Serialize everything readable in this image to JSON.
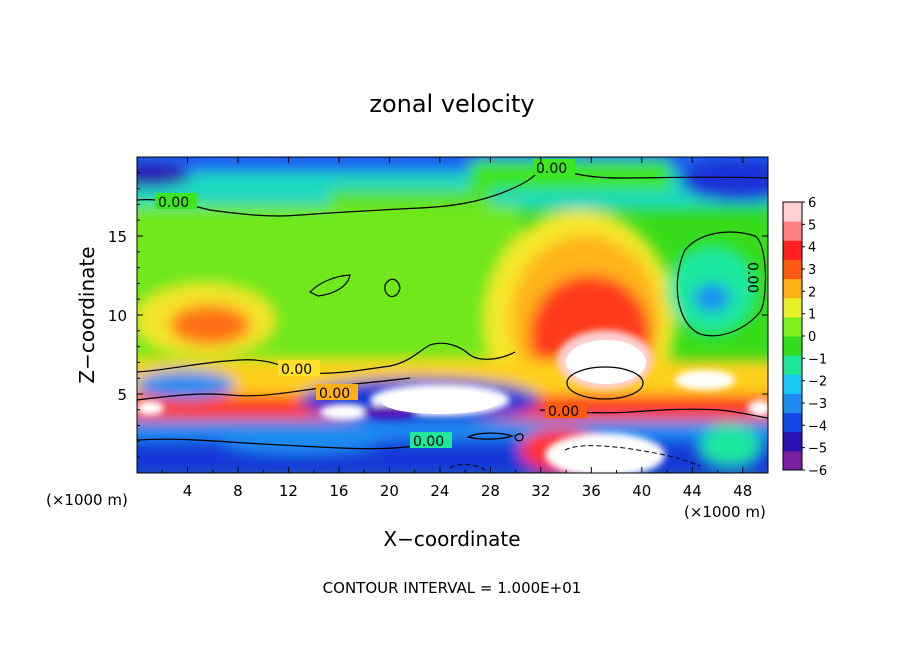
{
  "chart_data": {
    "type": "heatmap",
    "title": "zonal velocity",
    "xlabel": "X−coordinate",
    "ylabel": "Z−coordinate",
    "x_unit_label": "(×1000 m)",
    "x_unit_label_right": "(×1000 m)",
    "xlim": [
      0,
      50
    ],
    "ylim": [
      0,
      20
    ],
    "x_ticks": [
      4,
      8,
      12,
      16,
      20,
      24,
      28,
      32,
      36,
      40,
      44,
      48
    ],
    "y_ticks": [
      5,
      10,
      15
    ],
    "colorbar": {
      "ticks": [
        "6",
        "5",
        "4",
        "3",
        "2",
        "1",
        "0",
        "−1",
        "−2",
        "−3",
        "−4",
        "−5",
        "−6"
      ],
      "min": -6,
      "max": 6,
      "colors": [
        "#7a1fa2",
        "#2a12b5",
        "#1448e6",
        "#1f8cf2",
        "#18c8f0",
        "#1fe89a",
        "#33dc1c",
        "#7ef01e",
        "#e8f02a",
        "#ffb016",
        "#ff5a12",
        "#ff2020",
        "#ff8080",
        "#ffd0d0"
      ]
    },
    "contour_labels": [
      "0.00",
      "0.00",
      "0.00",
      "0.00",
      "0.00",
      "0.00",
      "0.00"
    ],
    "footer": "CONTOUR INTERVAL = 1.000E+01"
  }
}
